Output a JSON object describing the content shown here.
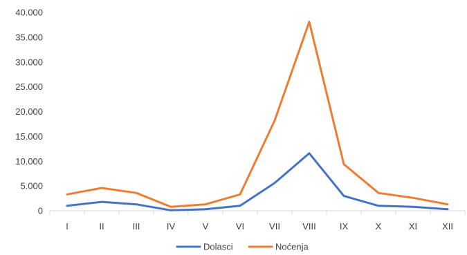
{
  "chart_data": {
    "type": "line",
    "categories": [
      "I",
      "II",
      "III",
      "IV",
      "V",
      "VI",
      "VII",
      "VIII",
      "IX",
      "X",
      "XI",
      "XII"
    ],
    "series": [
      {
        "name": "Dolasci",
        "color": "#4472C4",
        "values": [
          1000,
          1800,
          1300,
          100,
          300,
          1000,
          5600,
          11600,
          3000,
          1000,
          800,
          300
        ]
      },
      {
        "name": "Noćenja",
        "color": "#ED7D31",
        "values": [
          3300,
          4600,
          3600,
          800,
          1300,
          3300,
          18200,
          38100,
          9400,
          3600,
          2600,
          1300
        ]
      }
    ],
    "y_ticks": [
      {
        "value": 0,
        "label": "0"
      },
      {
        "value": 5000,
        "label": "5.000"
      },
      {
        "value": 10000,
        "label": "10.000"
      },
      {
        "value": 15000,
        "label": "15.000"
      },
      {
        "value": 20000,
        "label": "20.000"
      },
      {
        "value": 25000,
        "label": "25.000"
      },
      {
        "value": 30000,
        "label": "30.000"
      },
      {
        "value": 35000,
        "label": "35.000"
      },
      {
        "value": 40000,
        "label": "40.000"
      }
    ],
    "ylim": [
      0,
      40000
    ],
    "title": "",
    "xlabel": "",
    "ylabel": "",
    "grid": false,
    "legend_position": "bottom",
    "axis_color": "#D9D9D9"
  }
}
